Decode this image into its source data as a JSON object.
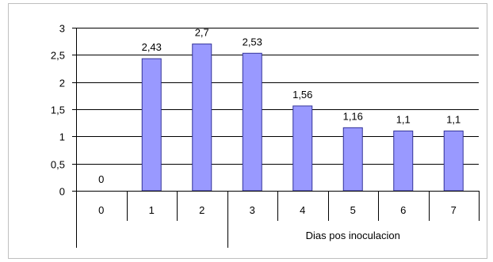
{
  "chart_data": {
    "type": "bar",
    "categories": [
      "0",
      "1",
      "2",
      "3",
      "4",
      "5",
      "6",
      "7"
    ],
    "values": [
      0,
      2.43,
      2.7,
      2.53,
      1.56,
      1.16,
      1.1,
      1.1
    ],
    "data_labels": [
      "0",
      "2,43",
      "2,7",
      "2,53",
      "1,56",
      "1,16",
      "1,1",
      "1,1"
    ],
    "y_ticks": [
      {
        "value": 0,
        "label": "0"
      },
      {
        "value": 0.5,
        "label": "0,5"
      },
      {
        "value": 1,
        "label": "1"
      },
      {
        "value": 1.5,
        "label": "1,5"
      },
      {
        "value": 2,
        "label": "2"
      },
      {
        "value": 2.5,
        "label": "2,5"
      },
      {
        "value": 3,
        "label": "3"
      }
    ],
    "ylim": [
      0,
      3
    ],
    "xlabel": "Dias pos inoculacion",
    "ylabel": "",
    "title": "",
    "grid": true,
    "bar_color": "#9999ff",
    "bar_stroke": "#333399"
  }
}
